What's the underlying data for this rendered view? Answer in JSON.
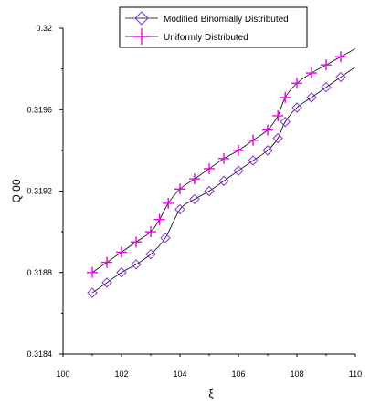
{
  "chart_data": {
    "type": "line",
    "xlabel": "ξ",
    "ylabel": "Q 00",
    "xlim": [
      100,
      110
    ],
    "ylim": [
      0.3184,
      0.32
    ],
    "xticks": [
      100,
      102,
      104,
      106,
      108,
      110
    ],
    "xtick_labels": [
      "100",
      "102",
      "104",
      "106",
      "108",
      "110"
    ],
    "yticks": [
      0.3184,
      0.3188,
      0.3192,
      0.3196,
      0.32
    ],
    "ytick_labels": [
      "0.3184",
      "0.3188",
      "0.3192",
      "0.3196",
      "0.32"
    ],
    "grid": false,
    "legend_position": "top-center",
    "series": [
      {
        "name": "Modified Binomially Distributed",
        "marker": "diamond",
        "color": "#8a2be2",
        "line_color": "#000000",
        "x": [
          101.0,
          101.5,
          102.0,
          102.5,
          103.0,
          103.5,
          104.0,
          104.5,
          105.0,
          105.5,
          106.0,
          106.5,
          107.0,
          107.35,
          107.6,
          108.0,
          108.5,
          109.0,
          109.5
        ],
        "y": [
          0.3187,
          0.31875,
          0.3188,
          0.31884,
          0.31889,
          0.31897,
          0.31911,
          0.31916,
          0.3192,
          0.31925,
          0.3193,
          0.31935,
          0.3194,
          0.31946,
          0.31954,
          0.31961,
          0.31966,
          0.31971,
          0.31976
        ]
      },
      {
        "name": "Uniformly Distributed",
        "marker": "plus",
        "color": "#ee00ee",
        "line_color": "#000000",
        "x": [
          101.0,
          101.5,
          102.0,
          102.5,
          103.0,
          103.3,
          103.6,
          104.0,
          104.5,
          105.0,
          105.5,
          106.0,
          106.5,
          107.0,
          107.35,
          107.6,
          108.0,
          108.5,
          109.0,
          109.5
        ],
        "y": [
          0.3188,
          0.31885,
          0.3189,
          0.31895,
          0.319,
          0.31906,
          0.31914,
          0.31921,
          0.31926,
          0.31931,
          0.31936,
          0.3194,
          0.31945,
          0.3195,
          0.31957,
          0.31966,
          0.31973,
          0.31978,
          0.31982,
          0.31986
        ]
      }
    ]
  }
}
